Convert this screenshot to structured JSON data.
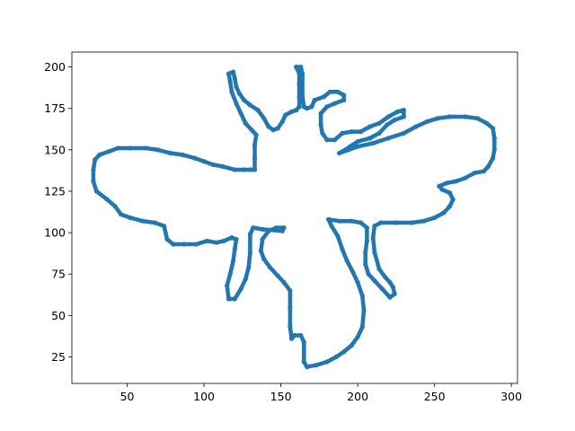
{
  "chart_data": {
    "type": "scatter",
    "title": "",
    "xlabel": "",
    "ylabel": "",
    "xlim": [
      14,
      304
    ],
    "ylim": [
      9,
      209
    ],
    "xticks": [
      50,
      100,
      150,
      200,
      250,
      300
    ],
    "yticks": [
      25,
      50,
      75,
      100,
      125,
      150,
      175,
      200
    ],
    "grid": false,
    "legend": "none",
    "series": [
      {
        "color": "#1f77b4",
        "marker": "dot",
        "connected": true,
        "points": [
          [
            160,
            200
          ],
          [
            163,
            200
          ],
          [
            164,
            196
          ],
          [
            164,
            182
          ],
          [
            165,
            176
          ],
          [
            167,
            175
          ],
          [
            170,
            176
          ],
          [
            172,
            180
          ],
          [
            178,
            182
          ],
          [
            182,
            185
          ],
          [
            187,
            185
          ],
          [
            191,
            183
          ],
          [
            191,
            180
          ],
          [
            185,
            178
          ],
          [
            180,
            176
          ],
          [
            176,
            172
          ],
          [
            176,
            165
          ],
          [
            177,
            160
          ],
          [
            180,
            156
          ],
          [
            185,
            156
          ],
          [
            190,
            160
          ],
          [
            196,
            161
          ],
          [
            202,
            161
          ],
          [
            208,
            164
          ],
          [
            214,
            166
          ],
          [
            220,
            170
          ],
          [
            226,
            173
          ],
          [
            230,
            174
          ],
          [
            230,
            170
          ],
          [
            224,
            168
          ],
          [
            219,
            165
          ],
          [
            214,
            160
          ],
          [
            208,
            157
          ],
          [
            200,
            155
          ],
          [
            195,
            152
          ],
          [
            190,
            149
          ],
          [
            188,
            148
          ],
          [
            194,
            150
          ],
          [
            200,
            152
          ],
          [
            210,
            154
          ],
          [
            220,
            157
          ],
          [
            230,
            160
          ],
          [
            238,
            164
          ],
          [
            245,
            167
          ],
          [
            252,
            169
          ],
          [
            260,
            170
          ],
          [
            270,
            170
          ],
          [
            278,
            169
          ],
          [
            284,
            166
          ],
          [
            288,
            163
          ],
          [
            289,
            157
          ],
          [
            289,
            150
          ],
          [
            288,
            145
          ],
          [
            285,
            140
          ],
          [
            282,
            137
          ],
          [
            276,
            136
          ],
          [
            270,
            133
          ],
          [
            264,
            131
          ],
          [
            258,
            130
          ],
          [
            253,
            128
          ],
          [
            255,
            126
          ],
          [
            260,
            124
          ],
          [
            262,
            120
          ],
          [
            260,
            116
          ],
          [
            256,
            112
          ],
          [
            250,
            109
          ],
          [
            243,
            107
          ],
          [
            235,
            106
          ],
          [
            225,
            106
          ],
          [
            215,
            106
          ],
          [
            211,
            104
          ],
          [
            210,
            97
          ],
          [
            211,
            88
          ],
          [
            214,
            78
          ],
          [
            218,
            73
          ],
          [
            221,
            70
          ],
          [
            223,
            67
          ],
          [
            224,
            63
          ],
          [
            221,
            61
          ],
          [
            216,
            66
          ],
          [
            211,
            71
          ],
          [
            207,
            75
          ],
          [
            205,
            81
          ],
          [
            205,
            88
          ],
          [
            206,
            95
          ],
          [
            206,
            103
          ],
          [
            202,
            106
          ],
          [
            196,
            107
          ],
          [
            188,
            107
          ],
          [
            181,
            108
          ],
          [
            183,
            104
          ],
          [
            187,
            98
          ],
          [
            190,
            90
          ],
          [
            193,
            83
          ],
          [
            197,
            76
          ],
          [
            200,
            70
          ],
          [
            203,
            62
          ],
          [
            204,
            53
          ],
          [
            203,
            43
          ],
          [
            200,
            37
          ],
          [
            196,
            32
          ],
          [
            191,
            28
          ],
          [
            186,
            25
          ],
          [
            180,
            22
          ],
          [
            173,
            20
          ],
          [
            167,
            19
          ],
          [
            165,
            22
          ],
          [
            165,
            34
          ],
          [
            163,
            38
          ],
          [
            159,
            38
          ],
          [
            157,
            36
          ],
          [
            156,
            43
          ],
          [
            156,
            55
          ],
          [
            156,
            65
          ],
          [
            152,
            70
          ],
          [
            148,
            74
          ],
          [
            143,
            79
          ],
          [
            139,
            84
          ],
          [
            137,
            89
          ],
          [
            138,
            96
          ],
          [
            142,
            101
          ],
          [
            147,
            103
          ],
          [
            152,
            103
          ],
          [
            151,
            101
          ],
          [
            138,
            102
          ],
          [
            132,
            103
          ],
          [
            130,
            99
          ],
          [
            130,
            88
          ],
          [
            129,
            79
          ],
          [
            127,
            72
          ],
          [
            124,
            66
          ],
          [
            120,
            60
          ],
          [
            116,
            60
          ],
          [
            115,
            68
          ],
          [
            117,
            75
          ],
          [
            119,
            83
          ],
          [
            120,
            90
          ],
          [
            121,
            96
          ],
          [
            118,
            97
          ],
          [
            113,
            95
          ],
          [
            108,
            94
          ],
          [
            102,
            95
          ],
          [
            95,
            93
          ],
          [
            87,
            93
          ],
          [
            80,
            93
          ],
          [
            76,
            96
          ],
          [
            74,
            104
          ],
          [
            68,
            106
          ],
          [
            60,
            107
          ],
          [
            52,
            109
          ],
          [
            46,
            111
          ],
          [
            42,
            116
          ],
          [
            37,
            120
          ],
          [
            30,
            125
          ],
          [
            28,
            131
          ],
          [
            28,
            138
          ],
          [
            29,
            144
          ],
          [
            32,
            147
          ],
          [
            38,
            149
          ],
          [
            44,
            151
          ],
          [
            52,
            151
          ],
          [
            62,
            151
          ],
          [
            70,
            150
          ],
          [
            78,
            148
          ],
          [
            86,
            147
          ],
          [
            94,
            145
          ],
          [
            100,
            143
          ],
          [
            106,
            141
          ],
          [
            112,
            140
          ],
          [
            120,
            138
          ],
          [
            126,
            138
          ],
          [
            130,
            138
          ],
          [
            133,
            138
          ],
          [
            133,
            145
          ],
          [
            133,
            153
          ],
          [
            134,
            159
          ],
          [
            131,
            162
          ],
          [
            127,
            166
          ],
          [
            124,
            172
          ],
          [
            121,
            178
          ],
          [
            118,
            185
          ],
          [
            117,
            191
          ],
          [
            116,
            196
          ],
          [
            119,
            197
          ],
          [
            120,
            193
          ],
          [
            121,
            188
          ],
          [
            123,
            184
          ],
          [
            126,
            180
          ],
          [
            130,
            177
          ],
          [
            135,
            174
          ],
          [
            139,
            169
          ],
          [
            142,
            164
          ],
          [
            145,
            162
          ],
          [
            148,
            163
          ],
          [
            151,
            167
          ],
          [
            153,
            171
          ],
          [
            157,
            173
          ],
          [
            160,
            174
          ],
          [
            162,
            176
          ],
          [
            162,
            182
          ],
          [
            162,
            190
          ],
          [
            162,
            196
          ],
          [
            160,
            200
          ]
        ]
      }
    ]
  }
}
